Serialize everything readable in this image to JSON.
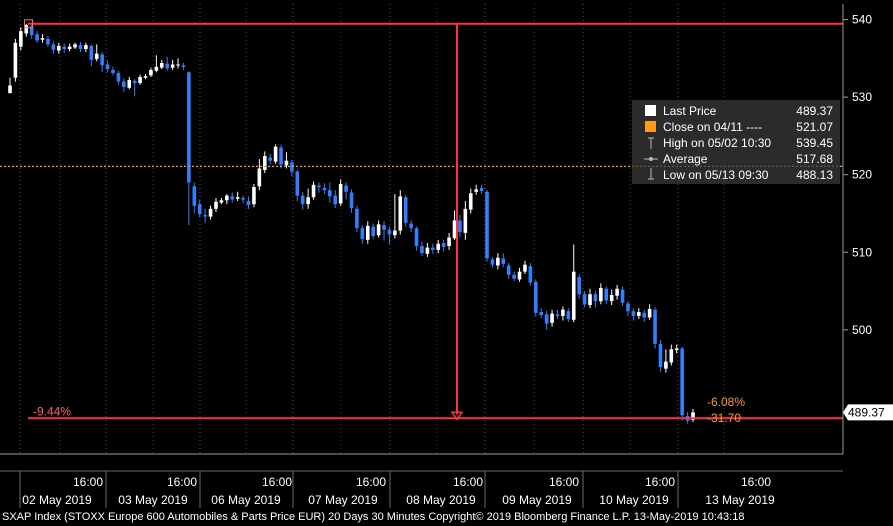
{
  "chart_data": {
    "type": "candlestick",
    "y_axis": {
      "min": 484,
      "max": 542,
      "ticks": [
        500,
        510,
        520,
        530,
        540
      ],
      "side": "right"
    },
    "x_time_labels": [
      "16:00",
      "16:00",
      "16:00",
      "16:00",
      "16:00",
      "16:00",
      "16:00",
      "16:00"
    ],
    "x_date_labels": [
      "02 May 2019",
      "03 May 2019",
      "06 May 2019",
      "07 May 2019",
      "08 May 2019",
      "09 May 2019",
      "10 May 2019",
      "13 May 2019"
    ],
    "last_price_tag": "489.37",
    "high_line": 539.45,
    "close_line": 521.07,
    "last_line": 488.6,
    "annotations": {
      "drawdown_pct": "-9.44%",
      "change_pct": "-6.08%",
      "change_abs": "-31.70"
    },
    "colors": {
      "up": "#ffffff",
      "down": "#2f80ff",
      "reference": "#ff3048",
      "close": "#ff9a1a"
    },
    "grid": "dotted-vertical",
    "candles": [
      [
        530.5,
        531.5,
        531.0,
        532.5
      ],
      [
        532.5,
        537.0,
        532.0,
        537.5
      ],
      [
        536.5,
        538.5,
        536.0,
        539.0
      ],
      [
        538.2,
        539.3,
        537.8,
        539.45
      ],
      [
        539.1,
        538.0,
        537.5,
        539.3
      ],
      [
        538.1,
        537.3,
        537.0,
        538.5
      ],
      [
        537.4,
        537.6,
        537.0,
        538.1
      ],
      [
        537.5,
        536.8,
        536.5,
        537.9
      ],
      [
        536.8,
        536.1,
        535.6,
        537.2
      ],
      [
        536.0,
        536.6,
        535.6,
        537.0
      ],
      [
        536.5,
        536.2,
        535.7,
        536.9
      ],
      [
        536.2,
        536.5,
        535.9,
        536.9
      ],
      [
        536.4,
        536.8,
        536.2,
        537.0
      ],
      [
        536.7,
        536.2,
        535.8,
        537.1
      ],
      [
        536.2,
        536.7,
        535.8,
        537.0
      ],
      [
        536.6,
        534.8,
        534.0,
        536.8
      ],
      [
        534.9,
        535.6,
        534.6,
        536.8
      ],
      [
        535.5,
        534.1,
        533.2,
        535.8
      ],
      [
        534.2,
        533.6,
        533.2,
        534.7
      ],
      [
        533.5,
        533.1,
        532.8,
        533.9
      ],
      [
        533.1,
        532.0,
        531.6,
        533.4
      ],
      [
        532.0,
        531.3,
        530.7,
        532.4
      ],
      [
        531.2,
        532.2,
        531.0,
        532.6
      ],
      [
        532.1,
        531.8,
        530.1,
        532.3
      ],
      [
        531.8,
        532.6,
        531.6,
        532.9
      ],
      [
        532.5,
        532.7,
        532.3,
        533.0
      ],
      [
        532.8,
        533.5,
        532.6,
        533.8
      ],
      [
        533.4,
        533.9,
        533.2,
        535.4
      ],
      [
        533.8,
        534.4,
        533.6,
        534.8
      ],
      [
        534.3,
        533.7,
        533.4,
        535.2
      ],
      [
        533.8,
        534.2,
        533.5,
        534.8
      ],
      [
        534.2,
        534.2,
        533.7,
        535.0
      ],
      [
        534.1,
        533.9,
        533.5,
        534.4
      ],
      [
        533.2,
        519.0,
        513.5,
        533.3
      ],
      [
        518.5,
        516.0,
        515.0,
        519.0
      ],
      [
        516.2,
        514.9,
        514.5,
        516.8
      ],
      [
        514.8,
        514.6,
        513.8,
        515.6
      ],
      [
        514.6,
        515.6,
        514.2,
        516.0
      ],
      [
        515.6,
        516.5,
        515.2,
        517.0
      ],
      [
        516.4,
        516.7,
        516.2,
        517.0
      ],
      [
        516.7,
        517.3,
        516.2,
        517.5
      ],
      [
        517.2,
        516.8,
        516.4,
        517.7
      ],
      [
        516.9,
        517.1,
        516.6,
        517.8
      ],
      [
        517.0,
        516.8,
        516.3,
        517.3
      ],
      [
        516.6,
        516.1,
        515.6,
        517.2
      ],
      [
        516.2,
        518.4,
        515.8,
        518.8
      ],
      [
        518.5,
        520.8,
        518.0,
        522.0
      ],
      [
        520.6,
        522.4,
        520.2,
        523.0
      ],
      [
        522.2,
        521.8,
        521.3,
        522.7
      ],
      [
        521.7,
        523.6,
        521.4,
        523.9
      ],
      [
        523.5,
        521.3,
        520.8,
        523.9
      ],
      [
        521.2,
        521.8,
        520.8,
        522.9
      ],
      [
        521.6,
        520.4,
        519.8,
        521.9
      ],
      [
        520.4,
        517.3,
        516.6,
        520.6
      ],
      [
        517.3,
        516.2,
        515.5,
        517.8
      ],
      [
        516.2,
        517.1,
        515.6,
        518.2
      ],
      [
        517.1,
        518.7,
        516.8,
        519.1
      ],
      [
        518.6,
        518.4,
        517.7,
        519.0
      ],
      [
        518.3,
        518.0,
        517.5,
        518.9
      ],
      [
        518.0,
        517.2,
        516.4,
        519.0
      ],
      [
        517.3,
        516.2,
        515.7,
        518.0
      ],
      [
        516.3,
        518.8,
        516.0,
        519.4
      ],
      [
        518.6,
        517.8,
        516.8,
        519.0
      ],
      [
        517.7,
        515.7,
        515.1,
        518.1
      ],
      [
        515.6,
        513.1,
        512.6,
        516.0
      ],
      [
        513.1,
        511.7,
        511.1,
        513.5
      ],
      [
        511.6,
        513.4,
        511.1,
        514.0
      ],
      [
        513.3,
        512.1,
        511.7,
        513.7
      ],
      [
        512.2,
        513.6,
        511.9,
        514.1
      ],
      [
        513.5,
        512.9,
        511.5,
        514.0
      ],
      [
        512.9,
        512.3,
        511.0,
        513.3
      ],
      [
        512.2,
        512.8,
        511.8,
        517.5
      ],
      [
        512.8,
        517.2,
        512.3,
        518.0
      ],
      [
        517.1,
        513.8,
        513.3,
        517.4
      ],
      [
        513.7,
        513.1,
        512.6,
        514.1
      ],
      [
        513.1,
        510.8,
        510.2,
        513.3
      ],
      [
        510.8,
        509.9,
        509.5,
        511.4
      ],
      [
        509.8,
        510.6,
        509.4,
        511.2
      ],
      [
        510.6,
        510.3,
        509.8,
        511.1
      ],
      [
        510.3,
        511.1,
        509.9,
        511.6
      ],
      [
        511.2,
        510.7,
        510.1,
        511.6
      ],
      [
        510.8,
        511.9,
        510.3,
        512.5
      ],
      [
        511.8,
        514.1,
        511.6,
        515.4
      ],
      [
        514.1,
        512.6,
        512.0,
        514.8
      ],
      [
        512.5,
        515.6,
        511.6,
        516.6
      ],
      [
        515.5,
        517.6,
        515.0,
        518.2
      ],
      [
        517.8,
        518.1,
        517.4,
        518.7
      ],
      [
        518.3,
        517.9,
        517.5,
        518.7
      ],
      [
        517.8,
        509.2,
        508.8,
        518.0
      ],
      [
        509.1,
        508.4,
        508.0,
        509.4
      ],
      [
        508.3,
        509.3,
        507.8,
        509.9
      ],
      [
        509.2,
        508.5,
        508.1,
        509.9
      ],
      [
        508.3,
        507.1,
        506.6,
        508.6
      ],
      [
        507.1,
        506.6,
        506.3,
        507.5
      ],
      [
        506.5,
        507.5,
        506.2,
        508.0
      ],
      [
        507.5,
        508.4,
        507.2,
        508.9
      ],
      [
        508.2,
        506.1,
        505.7,
        508.6
      ],
      [
        506.2,
        502.2,
        501.7,
        506.5
      ],
      [
        502.3,
        501.9,
        501.5,
        502.8
      ],
      [
        502.0,
        500.8,
        500.0,
        502.4
      ],
      [
        500.9,
        502.1,
        500.4,
        502.6
      ],
      [
        502.0,
        501.8,
        501.4,
        502.6
      ],
      [
        501.8,
        502.6,
        501.2,
        503.0
      ],
      [
        502.4,
        501.4,
        501.0,
        502.8
      ],
      [
        501.3,
        507.5,
        501.0,
        511.0
      ],
      [
        506.8,
        504.6,
        504.0,
        507.2
      ],
      [
        504.6,
        503.3,
        502.9,
        505.0
      ],
      [
        503.2,
        504.6,
        502.8,
        505.3
      ],
      [
        504.6,
        503.7,
        502.9,
        505.0
      ],
      [
        503.7,
        505.4,
        503.3,
        506.0
      ],
      [
        505.3,
        503.8,
        503.3,
        505.6
      ],
      [
        503.7,
        504.5,
        503.2,
        505.2
      ],
      [
        504.4,
        505.3,
        503.9,
        505.8
      ],
      [
        505.2,
        503.5,
        503.1,
        505.6
      ],
      [
        503.4,
        502.4,
        501.8,
        503.7
      ],
      [
        502.4,
        501.8,
        501.2,
        502.8
      ],
      [
        501.8,
        502.3,
        501.4,
        502.8
      ],
      [
        502.2,
        501.6,
        501.0,
        502.6
      ],
      [
        501.6,
        502.7,
        501.3,
        503.3
      ],
      [
        502.6,
        498.2,
        497.6,
        502.9
      ],
      [
        498.2,
        495.2,
        494.6,
        498.7
      ],
      [
        495.0,
        495.9,
        494.5,
        497.5
      ],
      [
        495.8,
        497.5,
        495.4,
        498.1
      ],
      [
        497.4,
        497.6,
        497.0,
        498.1
      ],
      [
        497.6,
        489.0,
        488.3,
        497.8
      ],
      [
        488.9,
        488.3,
        487.9,
        489.4
      ],
      [
        488.4,
        489.37,
        488.13,
        489.8
      ]
    ]
  },
  "legend": {
    "items": [
      {
        "label": "Last Price",
        "value": "489.37",
        "marker": "white-square"
      },
      {
        "label": "Close on 04/11 ----",
        "value": "521.07",
        "marker": "orange-square"
      },
      {
        "label": "High on 05/02 10:30",
        "value": "539.45",
        "marker": "high-icon"
      },
      {
        "label": "Average",
        "value": "517.68",
        "marker": "average-icon"
      },
      {
        "label": "Low on 05/13 09:30",
        "value": "488.13",
        "marker": "low-icon"
      }
    ]
  },
  "footer": {
    "text": "SXAP Index (STOXX Europe 600 Automobiles & Parts Price EUR) 20 Days 30 Minutes  Copyright© 2019 Bloomberg Finance L.P.  13-May-2019 10:43:18"
  }
}
